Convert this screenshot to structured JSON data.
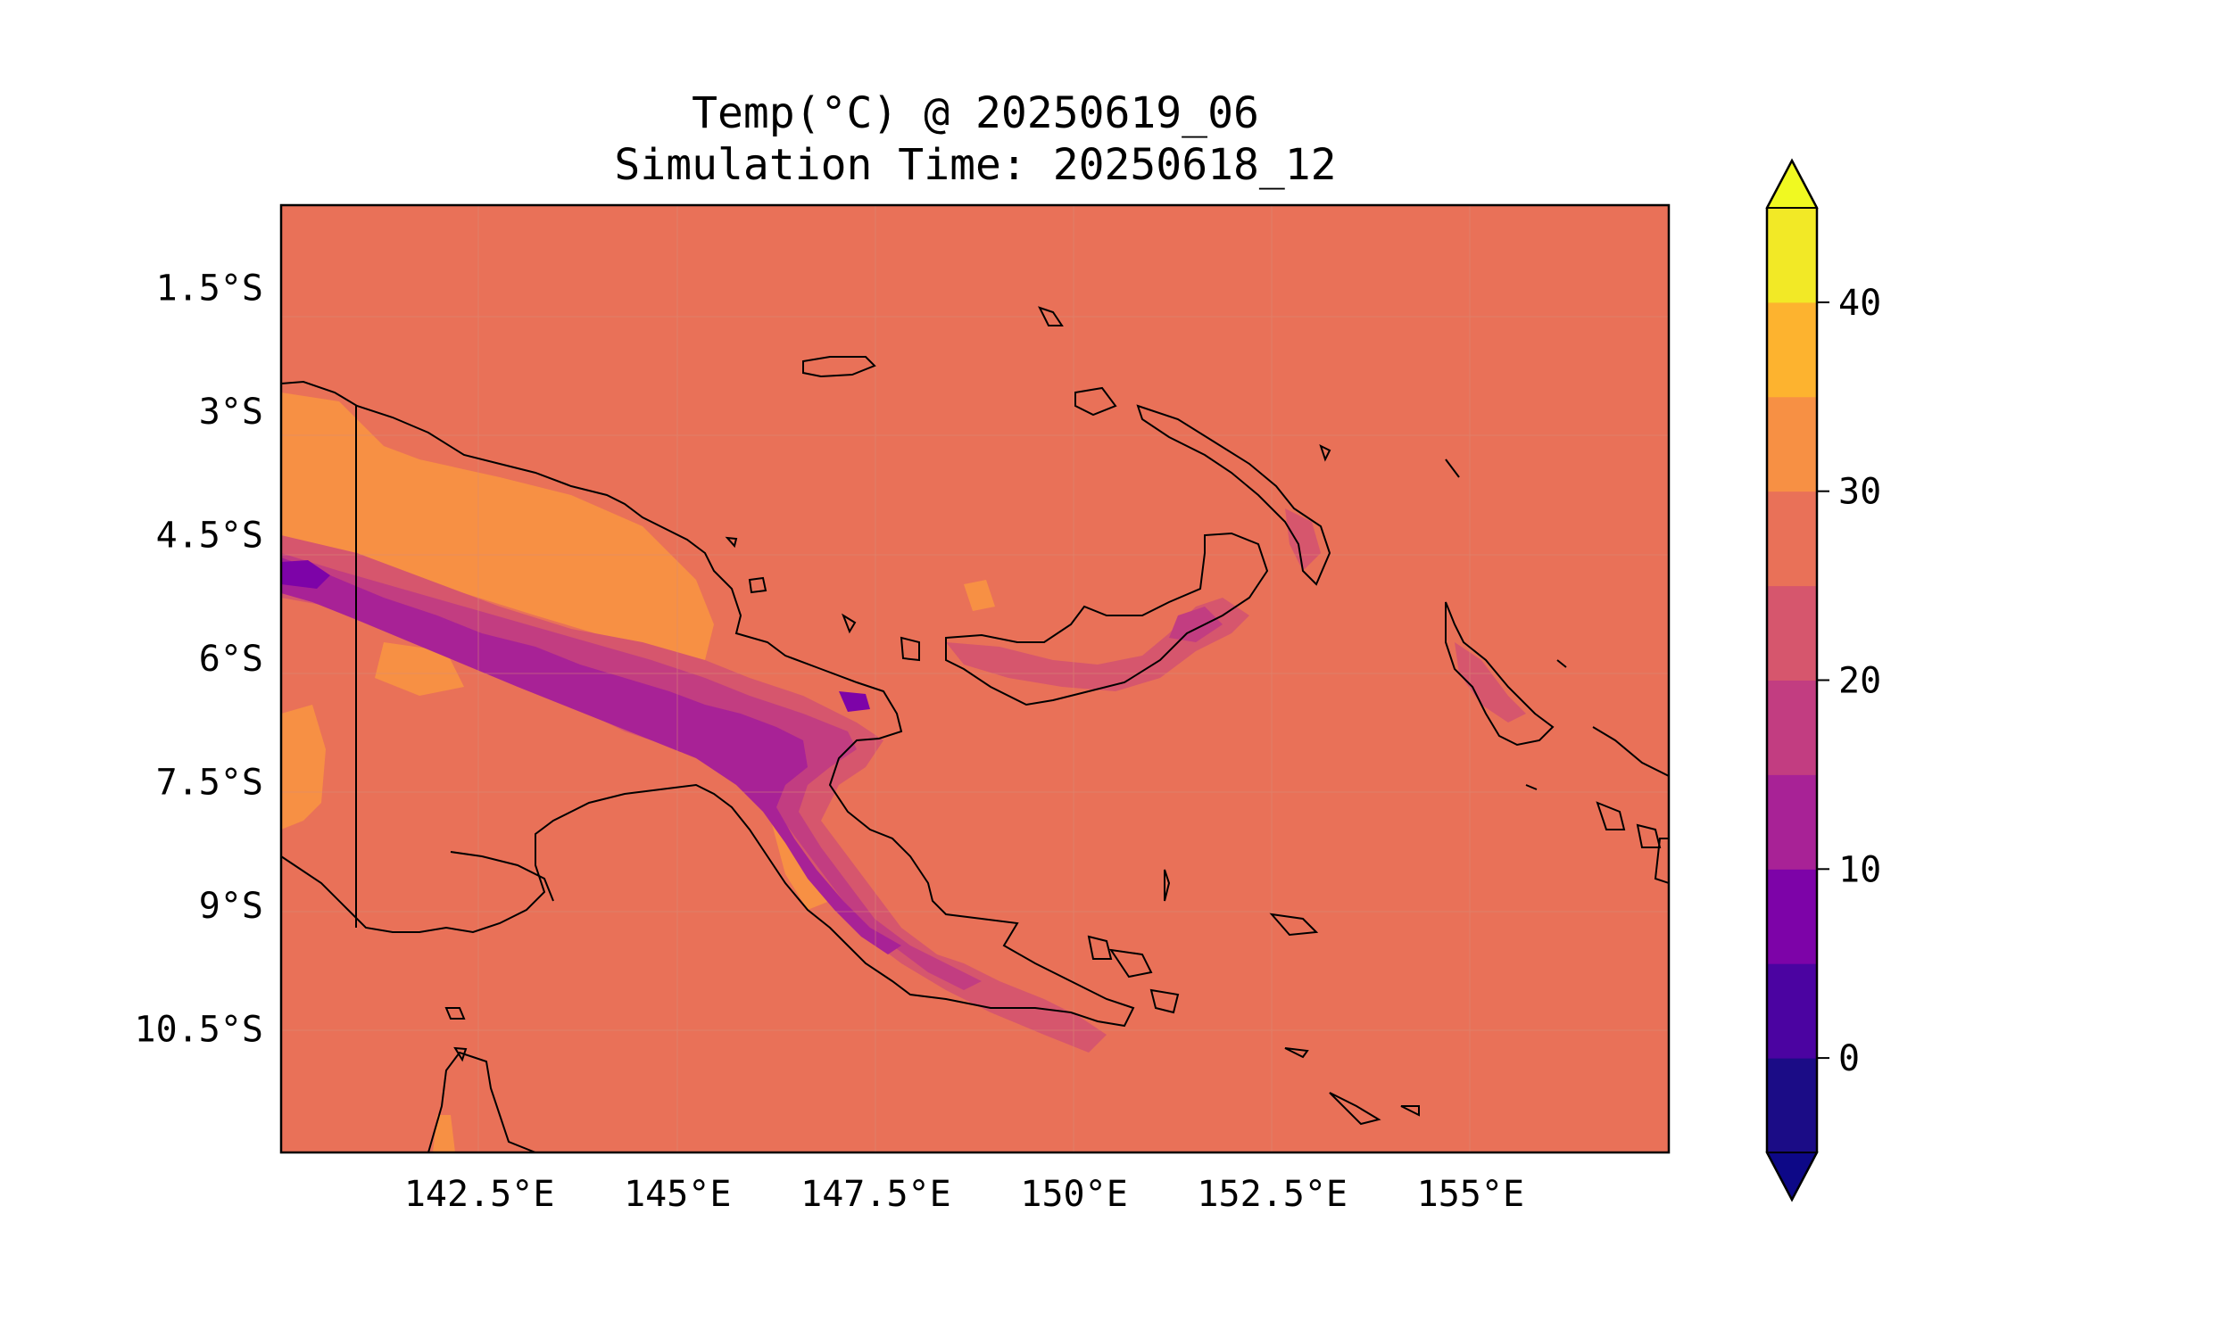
{
  "figure": {
    "title_line1": "Temp(°C) @ 20250619_06",
    "title_line2": "Simulation Time: 20250618_12"
  },
  "map": {
    "lon_range": [
      140.0,
      157.5
    ],
    "lat_range": [
      -12.0,
      -0.5
    ],
    "lon_ticks": [
      {
        "value": 142.5,
        "label": "142.5°E"
      },
      {
        "value": 145.0,
        "label": "145°E"
      },
      {
        "value": 147.5,
        "label": "147.5°E"
      },
      {
        "value": 150.0,
        "label": "150°E"
      },
      {
        "value": 152.5,
        "label": "152.5°E"
      },
      {
        "value": 155.0,
        "label": "155°E"
      }
    ],
    "lat_ticks": [
      {
        "value": -1.5,
        "label": "1.5°S"
      },
      {
        "value": -3.0,
        "label": "3°S"
      },
      {
        "value": -4.5,
        "label": "4.5°S"
      },
      {
        "value": -6.0,
        "label": "6°S"
      },
      {
        "value": -7.5,
        "label": "7.5°S"
      },
      {
        "value": -9.0,
        "label": "9°S"
      },
      {
        "value": -10.5,
        "label": "10.5°S"
      }
    ],
    "gridlines": true,
    "border_lon": 141.0
  },
  "colorbar": {
    "vmin": -5,
    "vmax": 45,
    "step": 5,
    "extend": "both",
    "colors": [
      "#1b0c86",
      "#4b03a1",
      "#7d03a8",
      "#a82296",
      "#c23d81",
      "#d6566d",
      "#e97158",
      "#f79044",
      "#fdb32f",
      "#f2e926"
    ],
    "over_color": "#f0f921",
    "under_color": "#0d0887",
    "ticks": [
      {
        "value": 0,
        "label": "0"
      },
      {
        "value": 10,
        "label": "10"
      },
      {
        "value": 20,
        "label": "20"
      },
      {
        "value": 30,
        "label": "30"
      },
      {
        "value": 40,
        "label": "40"
      }
    ]
  },
  "field": {
    "background_level_color": "#e97158"
  }
}
